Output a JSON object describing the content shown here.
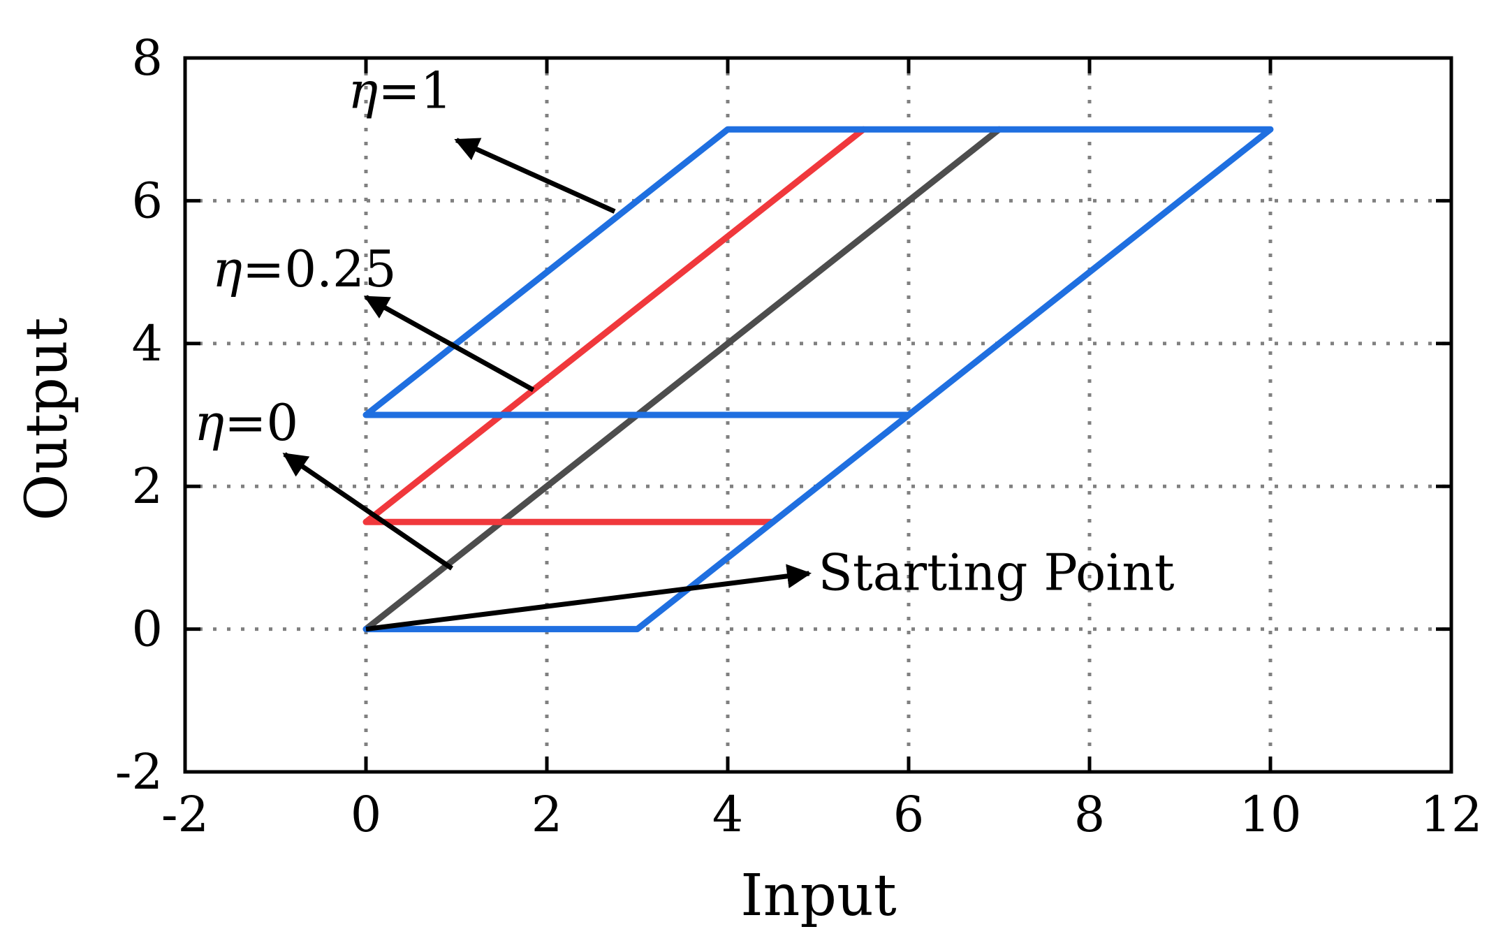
{
  "chart_data": {
    "type": "line",
    "xlabel": "Input",
    "ylabel": "Output",
    "xlim": [
      -2,
      12
    ],
    "ylim": [
      -2,
      8
    ],
    "xticks": [
      "-2",
      "0",
      "2",
      "4",
      "6",
      "8",
      "10",
      "12"
    ],
    "yticks": [
      "-2",
      "0",
      "2",
      "4",
      "6",
      "8"
    ],
    "grid": true,
    "colors": {
      "blue": "#1f6fe0",
      "red": "#f0383c",
      "gray": "#4d4d4d",
      "black": "#000000"
    },
    "series": [
      {
        "color": "#4d4d4d",
        "x": [
          0,
          7
        ],
        "y": [
          0,
          7
        ]
      },
      {
        "color": "#f0383c",
        "x": [
          4.5,
          0,
          5.5
        ],
        "y": [
          1.5,
          1.5,
          7
        ]
      },
      {
        "color": "#1f6fe0",
        "x": [
          0,
          3,
          10,
          4,
          0,
          6
        ],
        "y": [
          0,
          0,
          7,
          7,
          3,
          3
        ]
      }
    ],
    "annotations": [
      {
        "symbol": "η",
        "text": "=1",
        "text_x": -0.2,
        "text_y": 7.3,
        "tail": [
          2.75,
          5.85
        ],
        "head": [
          1.0,
          6.85
        ]
      },
      {
        "symbol": "η",
        "text": "=0.25",
        "text_x": -1.7,
        "text_y": 4.8,
        "tail": [
          1.85,
          3.35
        ],
        "head": [
          0.0,
          4.65
        ]
      },
      {
        "symbol": "η",
        "text": "=0",
        "text_x": -1.9,
        "text_y": 2.65,
        "tail": [
          0.95,
          0.85
        ],
        "head": [
          -0.9,
          2.45
        ]
      },
      {
        "symbol": "",
        "text": "Starting Point",
        "text_x": 5.0,
        "text_y": 0.55,
        "tail": [
          0.0,
          0.0
        ],
        "head": [
          4.9,
          0.78
        ]
      }
    ]
  }
}
